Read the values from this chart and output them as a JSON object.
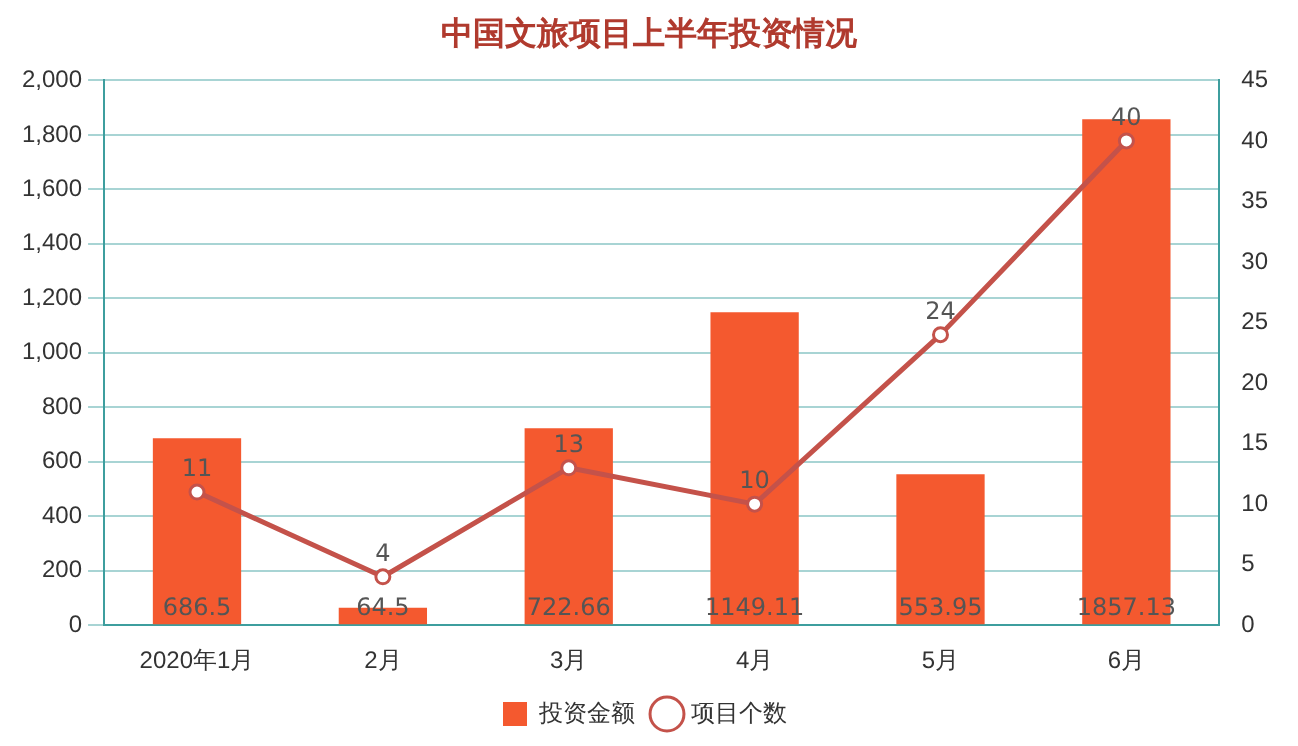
{
  "chart_data": {
    "type": "bar",
    "title": "中国文旅项目上半年投资情况",
    "categories": [
      "2020年1月",
      "2月",
      "3月",
      "4月",
      "5月",
      "6月"
    ],
    "series": [
      {
        "name": "投资金额",
        "color": "#f4592f",
        "values": [
          686.5,
          64.5,
          722.66,
          1149.11,
          553.95,
          1857.13
        ]
      },
      {
        "name": "项目个数",
        "type": "line",
        "axis": "y2",
        "color": "#c4524a",
        "values": [
          11,
          4,
          13,
          10,
          24,
          40
        ]
      }
    ],
    "ylim": [
      0,
      2000
    ],
    "yticks": [
      0,
      200,
      400,
      600,
      800,
      {
        "value": 1000,
        "label": "1,000"
      },
      {
        "value": 1200,
        "label": "1,200"
      },
      {
        "value": 1400,
        "label": "1,400"
      },
      {
        "value": 1600,
        "label": "1,600"
      },
      {
        "value": 1800,
        "label": "1,800"
      },
      {
        "value": 2000,
        "label": "2,000"
      }
    ],
    "y2lim": [
      0,
      45
    ],
    "y2ticks": [
      0,
      5,
      10,
      15,
      20,
      25,
      30,
      35,
      40,
      45
    ],
    "grid": "y",
    "legend": "bottom",
    "marker": "circle",
    "line_style": "solid",
    "data_labels": true
  }
}
